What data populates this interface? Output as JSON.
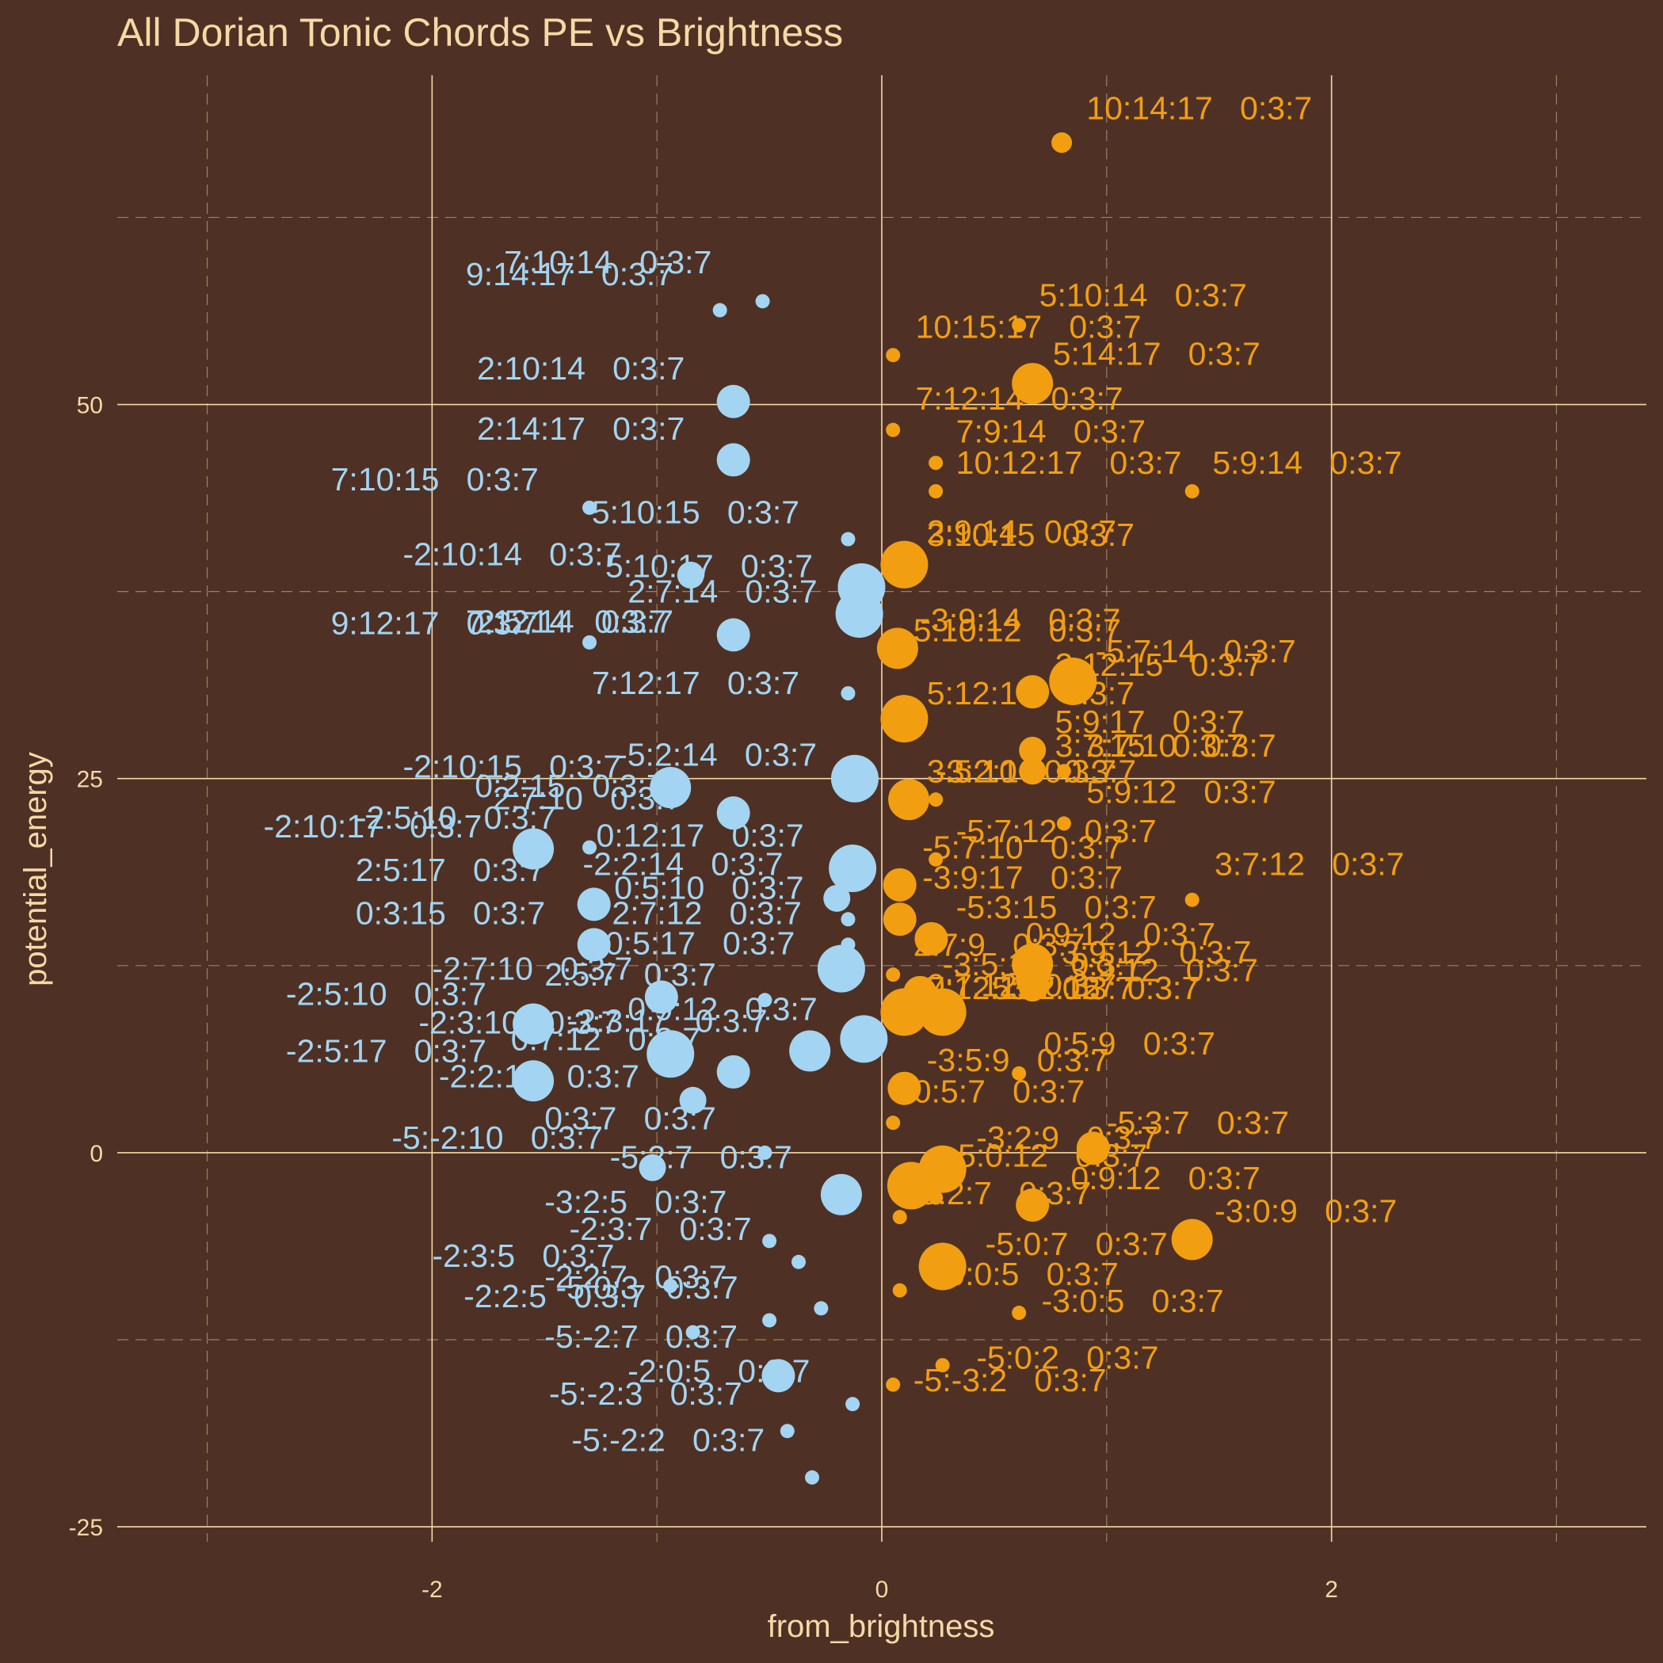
{
  "chart_data": {
    "type": "scatter",
    "title": "All Dorian Tonic Chords PE vs Brightness",
    "xlabel": "from_brightness",
    "ylabel": "potential_energy",
    "xlim": [
      -3.4,
      3.4
    ],
    "ylim": [
      -26,
      72
    ],
    "x_ticks": [
      -2,
      0,
      2
    ],
    "y_ticks": [
      -25,
      0,
      25,
      50
    ],
    "grid": "major solid, minor dashed",
    "legend": "none",
    "colors": {
      "background": "#4e3124",
      "blue": "#a3d4f2",
      "orange": "#f29e11",
      "text": "#f5d9a6"
    },
    "size_note": "point size reflects occurrence count",
    "points": [
      {
        "x": 0.8,
        "y": 67.5,
        "s": 2,
        "c": "orange",
        "label": "10:14:17   0:3:7",
        "lx": 0.91,
        "ly": 69.8
      },
      {
        "x": 0.61,
        "y": 55.3,
        "s": 1,
        "c": "orange",
        "label": "5:10:14   0:3:7",
        "lx": 0.7,
        "ly": 57.3
      },
      {
        "x": 0.05,
        "y": 53.3,
        "s": 1,
        "c": "orange",
        "label": "10:15:17   0:3:7",
        "lx": 0.15,
        "ly": 55.2
      },
      {
        "x": 0.67,
        "y": 51.4,
        "s": 5,
        "c": "orange",
        "label": "5:14:17   0:3:7",
        "lx": 0.76,
        "ly": 53.4
      },
      {
        "x": 0.05,
        "y": 48.3,
        "s": 1,
        "c": "orange",
        "label": "7:12:14   0:3:7",
        "lx": 0.15,
        "ly": 50.4
      },
      {
        "x": 0.24,
        "y": 46.1,
        "s": 1,
        "c": "orange",
        "label": "7:9:14   0:3:7",
        "lx": 0.33,
        "ly": 48.2
      },
      {
        "x": 0.24,
        "y": 44.2,
        "s": 1,
        "c": "orange",
        "label": "10:12:17   0:3:7",
        "lx": 0.33,
        "ly": 46.1
      },
      {
        "x": 1.38,
        "y": 44.2,
        "s": 1,
        "c": "orange",
        "label": "5:9:14   0:3:7",
        "lx": 1.47,
        "ly": 46.1
      },
      {
        "x": 0.1,
        "y": 39.3,
        "s": 6,
        "c": "orange",
        "label": "2:9:14   0:3:7",
        "lx": 0.2,
        "ly": 41.5
      },
      {
        "x": 0.1,
        "y": 39.3,
        "s": 0,
        "c": "orange",
        "label": "3:10:15   0:3:7",
        "lx": 0.2,
        "ly": 41.3
      },
      {
        "x": 0.07,
        "y": 33.7,
        "s": 5,
        "c": "orange",
        "label": "-3:9:14   0:3:7",
        "lx": 0.17,
        "ly": 35.6
      },
      {
        "x": 0.07,
        "y": 33.5,
        "s": 0,
        "c": "orange",
        "label": "5:10:12   0:3:7",
        "lx": 0.14,
        "ly": 34.9
      },
      {
        "x": 0.85,
        "y": 31.5,
        "s": 6,
        "c": "orange",
        "label": "-5:7:14   0:3:7",
        "lx": 0.95,
        "ly": 33.5
      },
      {
        "x": 0.67,
        "y": 30.8,
        "s": 4,
        "c": "orange",
        "label": "2:12:15   0:3:7",
        "lx": 0.77,
        "ly": 32.6
      },
      {
        "x": 0.1,
        "y": 29.0,
        "s": 6,
        "c": "orange",
        "label": "5:12:17   0:3:7",
        "lx": 0.2,
        "ly": 30.7
      },
      {
        "x": 0.67,
        "y": 26.9,
        "s": 3,
        "c": "orange",
        "label": "5:9:17   0:3:7",
        "lx": 0.77,
        "ly": 28.8
      },
      {
        "x": 0.67,
        "y": 25.5,
        "s": 3,
        "c": "orange",
        "label": "3:7:15   0:3:7",
        "lx": 0.77,
        "ly": 27.2
      },
      {
        "x": 0.81,
        "y": 25.5,
        "s": 1,
        "c": "orange",
        "label": "3:7:10   0:3:7",
        "lx": 0.91,
        "ly": 27.2
      },
      {
        "x": 0.24,
        "y": 23.6,
        "s": 1,
        "c": "orange",
        "label": "-3:2:10   0:3:7",
        "lx": 0.24,
        "ly": 25.5
      },
      {
        "x": 0.12,
        "y": 23.6,
        "s": 5,
        "c": "orange",
        "label": "3:5:10   0:3:7",
        "lx": 0.2,
        "ly": 25.5
      },
      {
        "x": 0.81,
        "y": 22.0,
        "s": 1,
        "c": "orange",
        "label": "5:9:12   0:3:7",
        "lx": 0.91,
        "ly": 24.1
      },
      {
        "x": 0.24,
        "y": 19.6,
        "s": 1,
        "c": "orange",
        "label": "-5:7:12   0:3:7",
        "lx": 0.33,
        "ly": 21.5
      },
      {
        "x": 0.24,
        "y": 19.6,
        "s": 0,
        "c": "orange",
        "label": "-5:7:10   0:3:7",
        "lx": 0.18,
        "ly": 20.4
      },
      {
        "x": 0.08,
        "y": 17.9,
        "s": 4,
        "c": "orange",
        "label": "-3:9:17   0:3:7",
        "lx": 0.18,
        "ly": 18.4
      },
      {
        "x": 1.38,
        "y": 16.9,
        "s": 1,
        "c": "orange",
        "label": "3:7:12   0:3:7",
        "lx": 1.48,
        "ly": 19.3
      },
      {
        "x": 0.08,
        "y": 15.6,
        "s": 4,
        "c": "orange",
        "label": "-5:3:15   0:3:7",
        "lx": 0.33,
        "ly": 16.4
      },
      {
        "x": 0.22,
        "y": 14.3,
        "s": 4,
        "c": "orange",
        "label": "2:7:9   0:3:7",
        "lx": 0.14,
        "ly": 13.9
      },
      {
        "x": 0.67,
        "y": 12.6,
        "s": 5,
        "c": "orange",
        "label": "0:9:12   0:3:7",
        "lx": 0.64,
        "ly": 14.6
      },
      {
        "x": 0.85,
        "y": 12.2,
        "s": 0,
        "c": "orange",
        "label": "3:9:12   0:3:7",
        "lx": 0.8,
        "ly": 13.4
      },
      {
        "x": 0.67,
        "y": 11.6,
        "s": 4,
        "c": "orange",
        "label": "-3:5:17   0:3:7",
        "lx": 0.27,
        "ly": 12.6
      },
      {
        "x": 0.67,
        "y": 11.0,
        "s": 0,
        "c": "orange",
        "label": "3:9:12   0:3:7",
        "lx": 0.83,
        "ly": 12.2
      },
      {
        "x": 0.05,
        "y": 11.9,
        "s": 1,
        "c": "orange",
        "label": "7:12:15   0:3:7",
        "lx": 0.2,
        "ly": 11.0
      },
      {
        "x": 0.67,
        "y": 11.0,
        "s": 3,
        "c": "orange",
        "label": "0:7:12   0:3:7",
        "lx": 0.2,
        "ly": 11.2
      },
      {
        "x": 0.17,
        "y": 10.7,
        "s": 4,
        "c": "orange",
        "label": "5:12:15   0:3:7",
        "lx": 0.49,
        "ly": 11.0
      },
      {
        "x": 0.1,
        "y": 9.4,
        "s": 6,
        "c": "orange",
        "label": "3:7:12   0:3:7",
        "lx": 0.57,
        "ly": 11.0
      },
      {
        "x": 0.27,
        "y": 9.4,
        "s": 6,
        "c": "orange",
        "label": "",
        "lx": 0,
        "ly": 0
      },
      {
        "x": 0.61,
        "y": 5.3,
        "s": 1,
        "c": "orange",
        "label": "0:5:9   0:3:7",
        "lx": 0.72,
        "ly": 7.3
      },
      {
        "x": 0.61,
        "y": 5.3,
        "s": 0,
        "c": "orange",
        "label": "-3:5:9   0:3:7",
        "lx": 0.2,
        "ly": 6.2
      },
      {
        "x": 0.1,
        "y": 4.3,
        "s": 4,
        "c": "orange",
        "label": "0:5:7   0:3:7",
        "lx": 0.14,
        "ly": 4.1
      },
      {
        "x": 0.05,
        "y": 2.0,
        "s": 1,
        "c": "orange",
        "label": "-5:3:7   0:3:7",
        "lx": 1.0,
        "ly": 2.0
      },
      {
        "x": 0.94,
        "y": 0.3,
        "s": 4,
        "c": "orange",
        "label": "-3:2:9   0:3:7",
        "lx": 0.42,
        "ly": 1.0
      },
      {
        "x": 0.27,
        "y": -1.1,
        "s": 6,
        "c": "orange",
        "label": "-5:0:12   0:3:7",
        "lx": 0.29,
        "ly": -0.2
      },
      {
        "x": 0.27,
        "y": -1.1,
        "s": 0,
        "c": "orange",
        "label": "0:9:12   0:3:7",
        "lx": 0.84,
        "ly": -1.7
      },
      {
        "x": 0.13,
        "y": -2.2,
        "s": 6,
        "c": "orange",
        "label": "-5:2:7   0:3:7",
        "lx": 0.12,
        "ly": -2.7
      },
      {
        "x": 0.24,
        "y": -3.0,
        "s": 1,
        "c": "orange",
        "label": "",
        "lx": 0,
        "ly": 0
      },
      {
        "x": 0.67,
        "y": -3.5,
        "s": 4,
        "c": "orange",
        "label": "-3:0:9   0:3:7",
        "lx": 1.48,
        "ly": -3.9
      },
      {
        "x": 0.08,
        "y": -4.3,
        "s": 1,
        "c": "orange",
        "label": "",
        "lx": 0,
        "ly": 0
      },
      {
        "x": 1.38,
        "y": -5.8,
        "s": 5,
        "c": "orange",
        "label": "-5:0:7   0:3:7",
        "lx": 0.46,
        "ly": -6.1
      },
      {
        "x": 0.27,
        "y": -7.6,
        "s": 6,
        "c": "orange",
        "label": "0:0:5   0:3:7",
        "lx": 0.29,
        "ly": -8.1
      },
      {
        "x": 0.08,
        "y": -9.2,
        "s": 1,
        "c": "orange",
        "label": "-3:0:5   0:3:7",
        "lx": 0.71,
        "ly": -9.9
      },
      {
        "x": 0.61,
        "y": -10.7,
        "s": 1,
        "c": "orange",
        "label": "-5:0:2   0:3:7",
        "lx": 0.42,
        "ly": -13.7
      },
      {
        "x": 0.27,
        "y": -14.2,
        "s": 1,
        "c": "orange",
        "label": "-5:-3:2   0:3:7",
        "lx": 0.14,
        "ly": -15.2
      },
      {
        "x": 0.05,
        "y": -15.5,
        "s": 1,
        "c": "orange",
        "label": "",
        "lx": 0,
        "ly": 0
      },
      {
        "x": -0.53,
        "y": 56.9,
        "s": 1,
        "c": "blue",
        "label": "7:10:14   0:3:7",
        "lx": -1.68,
        "ly": 59.5
      },
      {
        "x": -0.72,
        "y": 56.3,
        "s": 1,
        "c": "blue",
        "label": "9:14:17   0:3:7",
        "lx": -1.85,
        "ly": 58.7
      },
      {
        "x": -0.66,
        "y": 50.2,
        "s": 4,
        "c": "blue",
        "label": "2:10:14   0:3:7",
        "lx": -1.8,
        "ly": 52.4
      },
      {
        "x": -0.66,
        "y": 46.3,
        "s": 4,
        "c": "blue",
        "label": "2:14:17   0:3:7",
        "lx": -1.8,
        "ly": 48.4
      },
      {
        "x": -1.3,
        "y": 43.1,
        "s": 1,
        "c": "blue",
        "label": "7:10:15   0:3:7",
        "lx": -2.45,
        "ly": 45.0
      },
      {
        "x": -0.15,
        "y": 41.0,
        "s": 1,
        "c": "blue",
        "label": "5:10:15   0:3:7",
        "lx": -1.29,
        "ly": 42.8
      },
      {
        "x": -0.85,
        "y": 38.6,
        "s": 3,
        "c": "blue",
        "label": "-2:10:14   0:3:7",
        "lx": -2.13,
        "ly": 40.0
      },
      {
        "x": -0.09,
        "y": 37.8,
        "s": 6,
        "c": "blue",
        "label": "5:10:17   0:3:7",
        "lx": -1.23,
        "ly": 39.2
      },
      {
        "x": -0.1,
        "y": 36.0,
        "s": 6,
        "c": "blue",
        "label": "2:7:14   0:3:7",
        "lx": -1.13,
        "ly": 37.5
      },
      {
        "x": -1.3,
        "y": 34.1,
        "s": 1,
        "c": "blue",
        "label": "7:12:14   0:3:7",
        "lx": -1.85,
        "ly": 35.5
      },
      {
        "x": -0.66,
        "y": 34.6,
        "s": 4,
        "c": "blue",
        "label": "2:5:14   0:3:7",
        "lx": -1.8,
        "ly": 35.5
      },
      {
        "x": -0.15,
        "y": 30.7,
        "s": 1,
        "c": "blue",
        "label": "9:12:17   0:3:7",
        "lx": -2.45,
        "ly": 35.4
      },
      {
        "x": -1.3,
        "y": 34.1,
        "s": 0,
        "c": "blue",
        "label": "7:12:17   0:3:7",
        "lx": -1.29,
        "ly": 31.4
      },
      {
        "x": -0.12,
        "y": 25.0,
        "s": 6,
        "c": "blue",
        "label": "-5:2:14   0:3:7",
        "lx": -1.18,
        "ly": 26.6
      },
      {
        "x": -0.94,
        "y": 24.4,
        "s": 5,
        "c": "blue",
        "label": "-2:10:15   0:3:7",
        "lx": -2.13,
        "ly": 25.8
      },
      {
        "x": -0.66,
        "y": 22.7,
        "s": 4,
        "c": "blue",
        "label": "0:2:15   0:3:7",
        "lx": -1.81,
        "ly": 24.5
      },
      {
        "x": -0.66,
        "y": 22.7,
        "s": 0,
        "c": "blue",
        "label": "2:7:10   0:3:7",
        "lx": -1.73,
        "ly": 23.7
      },
      {
        "x": -1.55,
        "y": 20.3,
        "s": 5,
        "c": "blue",
        "label": "-2:5:10   0:3:7",
        "lx": -2.34,
        "ly": 22.4
      },
      {
        "x": -1.55,
        "y": 20.3,
        "s": 0,
        "c": "blue",
        "label": "-2:10:17   0:3:7",
        "lx": -2.75,
        "ly": 21.8
      },
      {
        "x": -1.3,
        "y": 20.4,
        "s": 1,
        "c": "blue",
        "label": "0:12:17   0:3:7",
        "lx": -1.27,
        "ly": 21.2
      },
      {
        "x": -0.13,
        "y": 19.0,
        "s": 6,
        "c": "blue",
        "label": "-2:2:14   0:3:7",
        "lx": -1.33,
        "ly": 19.3
      },
      {
        "x": -1.3,
        "y": 20.4,
        "s": 0,
        "c": "blue",
        "label": "2:5:17   0:3:7",
        "lx": -2.34,
        "ly": 18.9
      },
      {
        "x": -0.2,
        "y": 17.0,
        "s": 3,
        "c": "blue",
        "label": "0:5:10   0:3:7",
        "lx": -1.19,
        "ly": 17.7
      },
      {
        "x": -1.28,
        "y": 16.6,
        "s": 4,
        "c": "blue",
        "label": "0:3:15   0:3:7",
        "lx": -2.34,
        "ly": 16.0
      },
      {
        "x": -0.15,
        "y": 15.6,
        "s": 1,
        "c": "blue",
        "label": "2:7:12   0:3:7",
        "lx": -1.2,
        "ly": 16.0
      },
      {
        "x": -1.28,
        "y": 13.9,
        "s": 4,
        "c": "blue",
        "label": "0:5:17   0:3:7",
        "lx": -1.23,
        "ly": 14.0
      },
      {
        "x": -0.15,
        "y": 13.9,
        "s": 1,
        "c": "blue",
        "label": "",
        "lx": 0,
        "ly": 0
      },
      {
        "x": -0.18,
        "y": 12.3,
        "s": 6,
        "c": "blue",
        "label": "2:5:7   0:3:7",
        "lx": -1.5,
        "ly": 11.9
      },
      {
        "x": -0.15,
        "y": 12.3,
        "s": 0,
        "c": "blue",
        "label": "-2:7:10   0:3:7",
        "lx": -2.0,
        "ly": 12.3
      },
      {
        "x": -0.98,
        "y": 10.4,
        "s": 4,
        "c": "blue",
        "label": "-2:5:10   0:3:7",
        "lx": -2.65,
        "ly": 10.6
      },
      {
        "x": -0.98,
        "y": 10.4,
        "s": 0,
        "c": "blue",
        "label": "0:9:12   0:3:7",
        "lx": -1.13,
        "ly": 9.6
      },
      {
        "x": -0.52,
        "y": 10.2,
        "s": 1,
        "c": "blue",
        "label": "",
        "lx": 0,
        "ly": 0
      },
      {
        "x": -1.55,
        "y": 8.6,
        "s": 5,
        "c": "blue",
        "label": "-2:3:10   0:3:7",
        "lx": -2.06,
        "ly": 8.7
      },
      {
        "x": -0.08,
        "y": 7.6,
        "s": 6,
        "c": "blue",
        "label": "-2:3:17   0:3:7",
        "lx": -1.4,
        "ly": 8.8
      },
      {
        "x": -0.94,
        "y": 6.6,
        "s": 6,
        "c": "blue",
        "label": "-2:5:17   0:3:7",
        "lx": -2.65,
        "ly": 6.8
      },
      {
        "x": -0.32,
        "y": 6.8,
        "s": 5,
        "c": "blue",
        "label": "0:7:12   0:3:7",
        "lx": -1.65,
        "ly": 7.6
      },
      {
        "x": -0.66,
        "y": 5.4,
        "s": 4,
        "c": "blue",
        "label": "-2:2:10   0:3:7",
        "lx": -1.97,
        "ly": 5.1
      },
      {
        "x": -1.55,
        "y": 4.8,
        "s": 5,
        "c": "blue",
        "label": "0:3:7   0:3:7",
        "lx": -1.5,
        "ly": 2.3
      },
      {
        "x": -0.84,
        "y": 3.5,
        "s": 3,
        "c": "blue",
        "label": "-5:-2:10   0:3:7",
        "lx": -2.18,
        "ly": 1.0
      },
      {
        "x": -0.52,
        "y": 0.0,
        "s": 1,
        "c": "blue",
        "label": "-5:2:7   0:3:7",
        "lx": -1.21,
        "ly": -0.3
      },
      {
        "x": -1.02,
        "y": -1.0,
        "s": 3,
        "c": "blue",
        "label": "",
        "lx": 0,
        "ly": 0
      },
      {
        "x": -0.18,
        "y": -2.8,
        "s": 5,
        "c": "blue",
        "label": "-3:2:5   0:3:7",
        "lx": -1.5,
        "ly": -3.3
      },
      {
        "x": -0.5,
        "y": -5.9,
        "s": 1,
        "c": "blue",
        "label": "-2:3:7   0:3:7",
        "lx": -1.39,
        "ly": -5.1
      },
      {
        "x": -0.37,
        "y": -7.3,
        "s": 1,
        "c": "blue",
        "label": "-2:3:5   0:3:7",
        "lx": -2.0,
        "ly": -6.9
      },
      {
        "x": -0.94,
        "y": -8.9,
        "s": 1,
        "c": "blue",
        "label": "-2:2:7   0:3:7",
        "lx": -1.5,
        "ly": -8.3
      },
      {
        "x": -0.94,
        "y": -8.9,
        "s": 0,
        "c": "blue",
        "label": "-5:0:3   0:3:7",
        "lx": -1.45,
        "ly": -9.0
      },
      {
        "x": -0.27,
        "y": -10.4,
        "s": 1,
        "c": "blue",
        "label": "-2:2:5   0:3:7",
        "lx": -1.86,
        "ly": -9.6
      },
      {
        "x": -0.5,
        "y": -11.2,
        "s": 1,
        "c": "blue",
        "label": "",
        "lx": 0,
        "ly": 0
      },
      {
        "x": -0.84,
        "y": -12.0,
        "s": 1,
        "c": "blue",
        "label": "-5:-2:7   0:3:7",
        "lx": -1.5,
        "ly": -12.3
      },
      {
        "x": -0.46,
        "y": -14.9,
        "s": 4,
        "c": "blue",
        "label": "-2:0:5   0:3:7",
        "lx": -1.13,
        "ly": -14.6
      },
      {
        "x": -0.13,
        "y": -16.8,
        "s": 1,
        "c": "blue",
        "label": "-5:-2:3   0:3:7",
        "lx": -1.48,
        "ly": -16.1
      },
      {
        "x": -0.42,
        "y": -18.6,
        "s": 1,
        "c": "blue",
        "label": "-5:-2:2   0:3:7",
        "lx": -1.38,
        "ly": -19.2
      },
      {
        "x": -0.31,
        "y": -21.7,
        "s": 1,
        "c": "blue",
        "label": "",
        "lx": 0,
        "ly": 0
      }
    ]
  }
}
